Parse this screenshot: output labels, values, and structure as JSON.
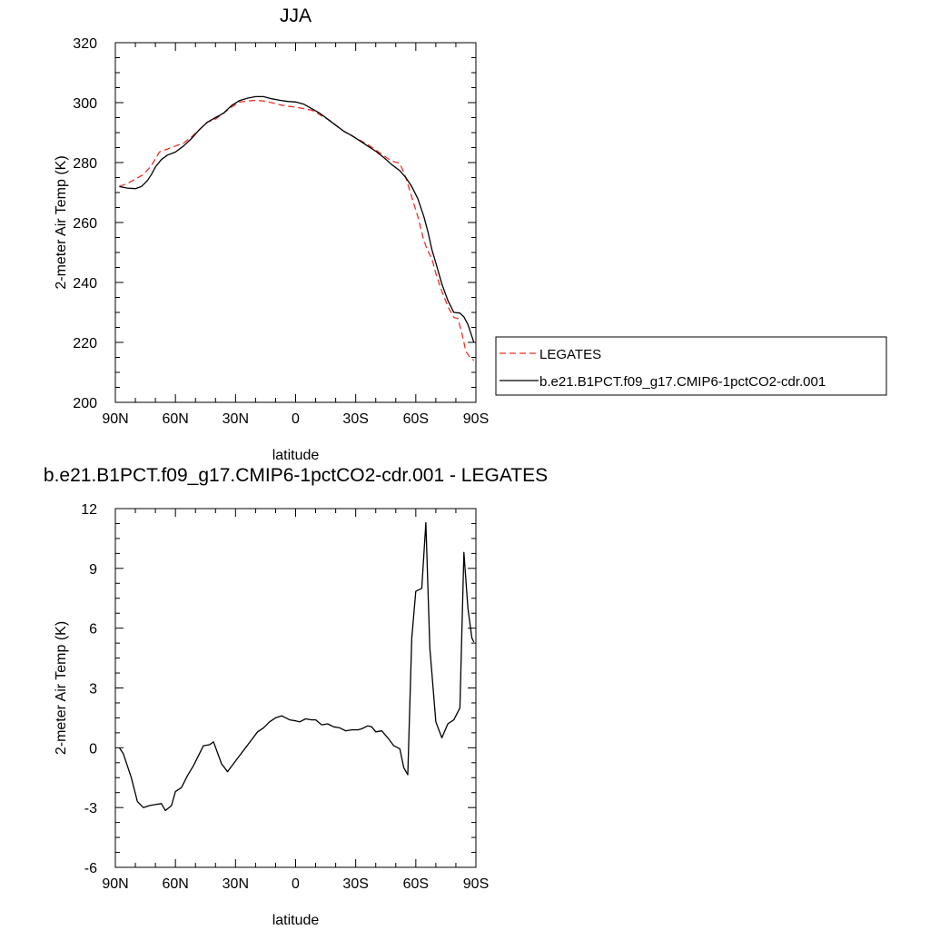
{
  "chart_data": [
    {
      "type": "line",
      "title": "JJA",
      "xlabel": "latitude",
      "ylabel": "2-meter Air Temp (K)",
      "xlim": [
        90,
        -90
      ],
      "ylim": [
        200,
        320
      ],
      "x_ticks": [
        90,
        60,
        30,
        0,
        -30,
        -60,
        -90
      ],
      "x_tick_labels": [
        "90N",
        "60N",
        "30N",
        "0",
        "30S",
        "60S",
        "90S"
      ],
      "y_ticks": [
        200,
        220,
        240,
        260,
        280,
        300,
        320
      ],
      "y_tick_labels": [
        "200",
        "220",
        "240",
        "260",
        "280",
        "300",
        "320"
      ],
      "legend_position": "right",
      "series": [
        {
          "name": "LEGATES",
          "color": "#e8312a",
          "dash": "dashed",
          "x": [
            88,
            84,
            80,
            76,
            72,
            68,
            64,
            60,
            56,
            52,
            48,
            44,
            40,
            36,
            32,
            28,
            24,
            20,
            16,
            12,
            8,
            4,
            0,
            -4,
            -8,
            -12,
            -16,
            -20,
            -24,
            -28,
            -32,
            -36,
            -40,
            -44,
            -48,
            -52,
            -55,
            -58,
            -61,
            -64,
            -66,
            -68,
            -70,
            -73,
            -76,
            -79,
            -81,
            -83,
            -85,
            -87,
            -89
          ],
          "y": [
            272,
            273,
            274.5,
            276,
            279,
            283.5,
            284.5,
            285.5,
            286.5,
            288.5,
            291,
            293.5,
            294.5,
            296.5,
            298.5,
            300.2,
            300.5,
            300.8,
            300.5,
            300,
            299.3,
            298.8,
            298.5,
            298,
            297.5,
            296,
            294.5,
            292.5,
            290.5,
            289,
            287.5,
            286,
            284.2,
            282.3,
            280.5,
            279.8,
            275,
            268.5,
            262,
            254,
            250.5,
            248,
            243,
            237,
            232,
            228.3,
            228,
            223,
            217,
            215,
            214
          ]
        },
        {
          "name": "b.e21.B1PCT.f09_g17.CMIP6-1pctCO2-cdr.001",
          "color": "#000000",
          "dash": "solid",
          "x": [
            88,
            84,
            80,
            77,
            74,
            72,
            70,
            67,
            64,
            60,
            56,
            52,
            48,
            44,
            40,
            36,
            32,
            28,
            24,
            20,
            16,
            12,
            8,
            4,
            0,
            -4,
            -8,
            -12,
            -16,
            -20,
            -24,
            -28,
            -32,
            -36,
            -40,
            -44,
            -48,
            -52,
            -55,
            -58,
            -61,
            -64,
            -66,
            -68,
            -70,
            -73,
            -76,
            -79,
            -82,
            -84,
            -86,
            -88,
            -89
          ],
          "y": [
            272,
            271.5,
            271.3,
            272,
            274,
            276,
            278.5,
            281,
            282.5,
            283.5,
            285.5,
            288,
            291,
            293.5,
            295,
            296.5,
            299,
            300.7,
            301.5,
            302,
            302,
            301.3,
            300.8,
            300.4,
            300.2,
            299.5,
            298,
            296.5,
            294.5,
            292.5,
            290.5,
            289,
            287.3,
            285.5,
            283.8,
            281.7,
            279.3,
            277.3,
            275,
            272,
            268,
            262,
            257,
            251,
            246.5,
            239.5,
            234,
            230,
            229.8,
            228.5,
            226,
            222,
            220
          ]
        }
      ]
    },
    {
      "type": "line",
      "title": "b.e21.B1PCT.f09_g17.CMIP6-1pctCO2-cdr.001 - LEGATES",
      "xlabel": "latitude",
      "ylabel": "2-meter Air Temp (K)",
      "xlim": [
        90,
        -90
      ],
      "ylim": [
        -6,
        12
      ],
      "x_ticks": [
        90,
        60,
        30,
        0,
        -30,
        -60,
        -90
      ],
      "x_tick_labels": [
        "90N",
        "60N",
        "30N",
        "0",
        "30S",
        "60S",
        "90S"
      ],
      "y_ticks": [
        -6,
        -3,
        0,
        3,
        6,
        9,
        12
      ],
      "y_tick_labels": [
        "-6",
        "-3",
        "0",
        "3",
        "6",
        "9",
        "12"
      ],
      "series": [
        {
          "color": "#000000",
          "dash": "solid",
          "x": [
            88,
            86,
            82,
            79,
            76,
            73,
            70,
            67,
            65,
            62,
            60,
            57,
            54,
            51,
            49,
            46,
            43,
            41,
            37,
            34,
            31,
            28,
            25,
            22,
            19,
            16,
            13,
            10,
            7,
            3,
            0,
            -2,
            -5,
            -8,
            -10,
            -13,
            -16,
            -19,
            -22,
            -25,
            -28,
            -31,
            -33,
            -36,
            -38,
            -40,
            -43,
            -46,
            -49,
            -52,
            -54,
            -56,
            -58,
            -60,
            -63,
            -65,
            -67,
            -70,
            -73,
            -76,
            -79,
            -82,
            -84,
            -86,
            -88,
            -89
          ],
          "y": [
            0,
            -0.3,
            -1.5,
            -2.7,
            -3,
            -2.9,
            -2.85,
            -2.8,
            -3.15,
            -2.9,
            -2.2,
            -2,
            -1.4,
            -0.9,
            -0.5,
            0.1,
            0.15,
            0.3,
            -0.8,
            -1.2,
            -0.8,
            -0.4,
            0,
            0.4,
            0.8,
            1,
            1.3,
            1.5,
            1.6,
            1.4,
            1.35,
            1.3,
            1.45,
            1.4,
            1.4,
            1.15,
            1.2,
            1.05,
            1.0,
            0.85,
            0.9,
            0.9,
            0.95,
            1.1,
            1.05,
            0.8,
            0.85,
            0.5,
            0.1,
            -0.05,
            -1,
            -1.35,
            5.5,
            7.85,
            8,
            11.3,
            5,
            1.3,
            0.5,
            1.2,
            1.4,
            2,
            9.8,
            7,
            5.5,
            5.3
          ]
        }
      ]
    }
  ]
}
